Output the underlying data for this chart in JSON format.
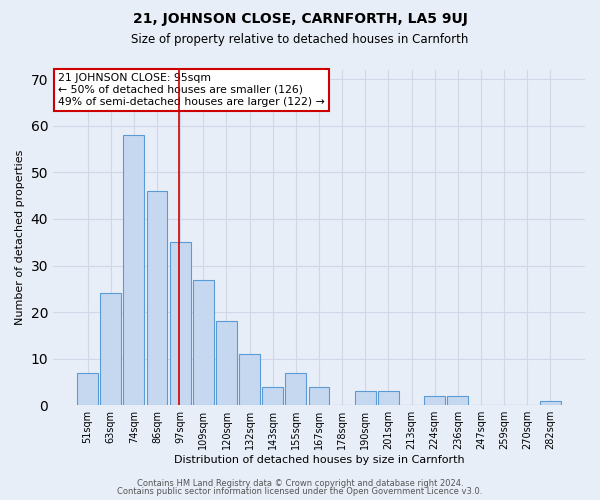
{
  "title": "21, JOHNSON CLOSE, CARNFORTH, LA5 9UJ",
  "subtitle": "Size of property relative to detached houses in Carnforth",
  "xlabel": "Distribution of detached houses by size in Carnforth",
  "ylabel": "Number of detached properties",
  "categories": [
    "51sqm",
    "63sqm",
    "74sqm",
    "86sqm",
    "97sqm",
    "109sqm",
    "120sqm",
    "132sqm",
    "143sqm",
    "155sqm",
    "167sqm",
    "178sqm",
    "190sqm",
    "201sqm",
    "213sqm",
    "224sqm",
    "236sqm",
    "247sqm",
    "259sqm",
    "270sqm",
    "282sqm"
  ],
  "values": [
    7,
    24,
    58,
    46,
    35,
    27,
    18,
    11,
    4,
    7,
    4,
    0,
    3,
    3,
    0,
    2,
    2,
    0,
    0,
    0,
    1
  ],
  "bar_color": "#c5d8f0",
  "bar_edge_color": "#5b9bd5",
  "bar_edge_width": 0.8,
  "vline_category_index": 4,
  "vline_color": "#cc0000",
  "annotation_text": "21 JOHNSON CLOSE: 95sqm\n← 50% of detached houses are smaller (126)\n49% of semi-detached houses are larger (122) →",
  "annotation_box_color": "#ffffff",
  "annotation_box_edge_color": "#cc0000",
  "ylim": [
    0,
    72
  ],
  "yticks": [
    0,
    10,
    20,
    30,
    40,
    50,
    60,
    70
  ],
  "grid_color": "#d0d8e8",
  "background_color": "#e8eef8",
  "footnote1": "Contains HM Land Registry data © Crown copyright and database right 2024.",
  "footnote2": "Contains public sector information licensed under the Open Government Licence v3.0."
}
